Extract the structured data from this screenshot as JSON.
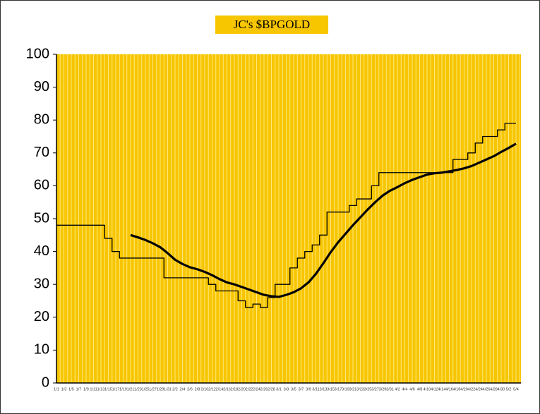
{
  "chart_data": {
    "type": "line",
    "title": "JC's $BPGOLD",
    "categories": [
      "1/1",
      "1/3",
      "1/5",
      "1/7",
      "1/9",
      "1/11",
      "1/13",
      "1/15",
      "1/17",
      "1/19",
      "1/21",
      "1/23",
      "1/25",
      "1/27",
      "1/29",
      "1/31",
      "2/2",
      "2/4",
      "2/6",
      "2/8",
      "2/10",
      "2/12",
      "2/14",
      "2/16",
      "2/18",
      "2/20",
      "2/22",
      "2/24",
      "2/26",
      "2/28",
      "3/1",
      "3/3",
      "3/5",
      "3/7",
      "3/9",
      "3/11",
      "3/13",
      "3/15",
      "3/17",
      "3/19",
      "3/21",
      "3/23",
      "3/25",
      "3/27",
      "3/29",
      "3/31",
      "4/2",
      "4/4",
      "4/6",
      "4/8",
      "4/10",
      "4/12",
      "4/14",
      "4/16",
      "4/18",
      "4/20",
      "4/22",
      "4/24",
      "4/26",
      "4/28",
      "4/30",
      "5/2",
      "5/4"
    ],
    "series": [
      {
        "color": "#000000",
        "width": 1.3,
        "step": true,
        "values": [
          48,
          48,
          48,
          48,
          48,
          48,
          48,
          44,
          40,
          38,
          38,
          38,
          38,
          38,
          38,
          32,
          32,
          32,
          32,
          32,
          32,
          30,
          28,
          28,
          28,
          25,
          23,
          24,
          23,
          26,
          30,
          30,
          35,
          38,
          40,
          42,
          45,
          52,
          52,
          52,
          54,
          56,
          56,
          60,
          64,
          64,
          64,
          64,
          64,
          64,
          64,
          64,
          64,
          64,
          68,
          68,
          70,
          73,
          75,
          75,
          77,
          79,
          79
        ]
      },
      {
        "color": "#000000",
        "width": 3.2,
        "values": [
          null,
          null,
          null,
          null,
          null,
          null,
          null,
          null,
          null,
          null,
          45,
          44.3,
          43.5,
          42.5,
          41.3,
          39.5,
          37.5,
          36.2,
          35.2,
          34.6,
          33.8,
          32.8,
          31.6,
          30.6,
          30,
          29.2,
          28.4,
          27.6,
          26.8,
          26.4,
          26.2,
          26.8,
          27.6,
          28.8,
          30.6,
          33.2,
          36.4,
          39.8,
          42.8,
          45.4,
          48,
          50.4,
          52.8,
          55,
          57,
          58.5,
          59.6,
          60.8,
          61.8,
          62.6,
          63.4,
          63.8,
          64,
          64.4,
          64.8,
          65.3,
          66,
          67,
          68,
          69,
          70.3,
          71.5,
          72.8
        ]
      }
    ],
    "ylim": [
      0,
      100
    ],
    "yticks": [
      0,
      10,
      20,
      30,
      40,
      50,
      60,
      70,
      80,
      90,
      100
    ],
    "plot_color": "#f7c600",
    "grid_color": "#ffe680"
  }
}
